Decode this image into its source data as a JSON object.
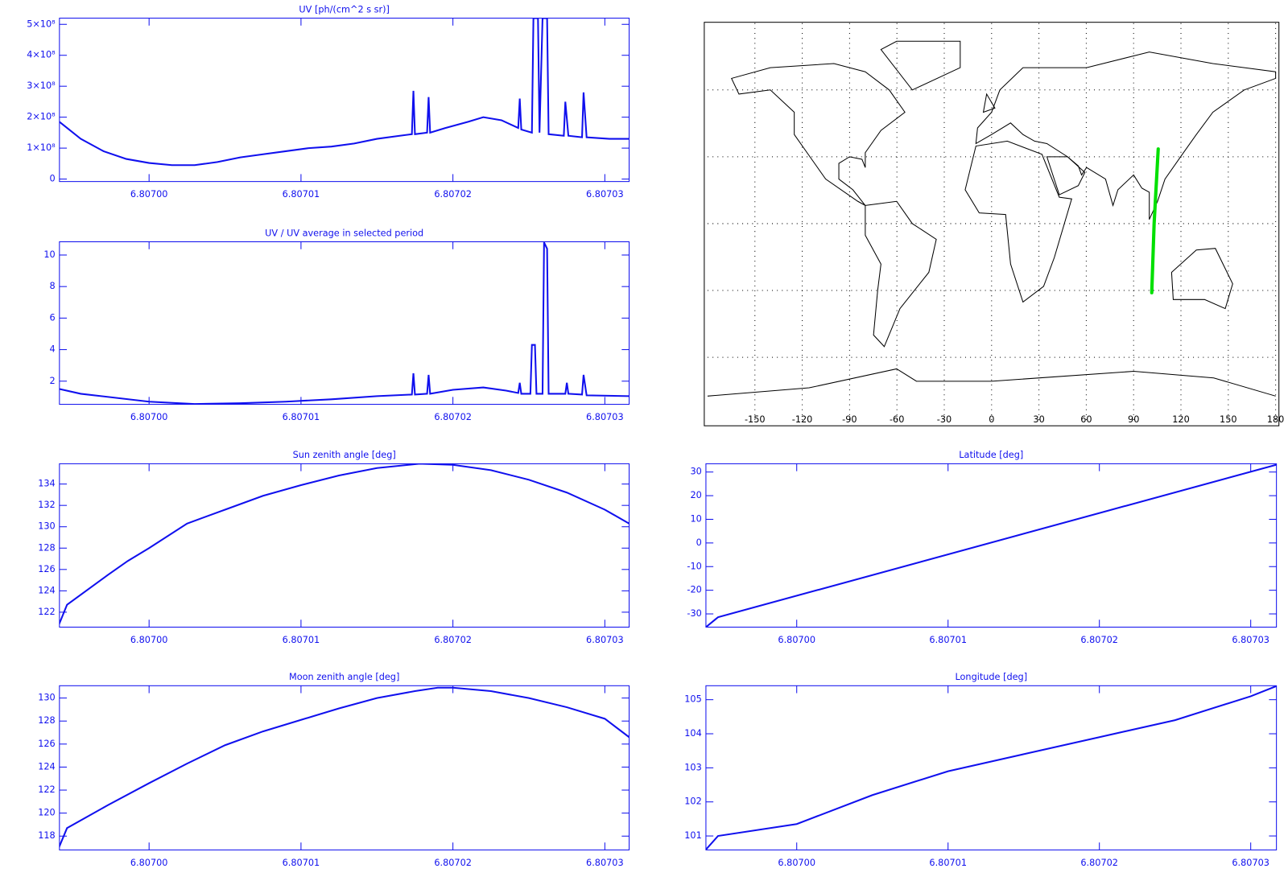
{
  "chart_data": [
    {
      "type": "line",
      "title": "UV [ph/(cm^2 s sr)]",
      "color": "#1010ee",
      "xlim": [
        6.8069941,
        6.8070316
      ],
      "ylim": [
        -8000000,
        520000000
      ],
      "xticks": [
        {
          "value": 6.807,
          "label": "6.80700"
        },
        {
          "value": 6.80701,
          "label": "6.80701"
        },
        {
          "value": 6.80702,
          "label": "6.80702"
        },
        {
          "value": 6.80703,
          "label": "6.80703"
        }
      ],
      "yticks": [
        0,
        {
          "value": 100000000,
          "label": "1×10⁸"
        },
        {
          "value": 200000000,
          "label": "2×10⁸"
        },
        {
          "value": 300000000,
          "label": "3×10⁸"
        },
        {
          "value": 400000000,
          "label": "4×10⁸"
        },
        {
          "value": 500000000,
          "label": "5×10⁸"
        }
      ],
      "x": [
        6.8069941,
        6.8069955,
        6.806997,
        6.8069985,
        6.807,
        6.8070015,
        6.807003,
        6.8070045,
        6.807006,
        6.8070075,
        6.807009,
        6.8070105,
        6.807012,
        6.8070135,
        6.807015,
        6.8070165,
        6.8070173,
        6.8070174,
        6.8070175,
        6.8070183,
        6.8070184,
        6.8070185,
        6.8070195,
        6.807021,
        6.807022,
        6.8070232,
        6.8070243,
        6.8070244,
        6.8070245,
        6.8070252,
        6.8070253,
        6.8070256,
        6.8070257,
        6.8070259,
        6.8070262,
        6.8070263,
        6.8070273,
        6.8070274,
        6.8070276,
        6.8070285,
        6.8070286,
        6.8070288,
        6.8070303,
        6.8070316
      ],
      "values": [
        185000000,
        130000000,
        90000000,
        65000000,
        52000000,
        45000000,
        45000000,
        55000000,
        70000000,
        80000000,
        90000000,
        100000000,
        105000000,
        115000000,
        130000000,
        140000000,
        145000000,
        285000000,
        145000000,
        150000000,
        265000000,
        150000000,
        165000000,
        185000000,
        200000000,
        190000000,
        165000000,
        260000000,
        160000000,
        150000000,
        520000000,
        520000000,
        150000000,
        520000000,
        520000000,
        145000000,
        140000000,
        250000000,
        140000000,
        135000000,
        280000000,
        135000000,
        130000000,
        130000000
      ]
    },
    {
      "type": "line",
      "title": "UV / UV average in selected period",
      "color": "#1010ee",
      "xlim": [
        6.8069941,
        6.8070316
      ],
      "ylim": [
        0.53,
        10.84
      ],
      "xticks": [
        {
          "value": 6.807,
          "label": "6.80700"
        },
        {
          "value": 6.80701,
          "label": "6.80701"
        },
        {
          "value": 6.80702,
          "label": "6.80702"
        },
        {
          "value": 6.80703,
          "label": "6.80703"
        }
      ],
      "yticks": [
        2,
        4,
        6,
        8,
        10
      ],
      "x": [
        6.8069941,
        6.8069955,
        6.807,
        6.807003,
        6.807006,
        6.807009,
        6.807012,
        6.807015,
        6.8070173,
        6.8070174,
        6.8070175,
        6.8070183,
        6.8070184,
        6.8070185,
        6.80702,
        6.807022,
        6.8070235,
        6.8070243,
        6.8070244,
        6.8070245,
        6.8070251,
        6.8070252,
        6.8070254,
        6.8070255,
        6.8070259,
        6.807026,
        6.8070262,
        6.8070263,
        6.8070274,
        6.8070275,
        6.8070276,
        6.8070285,
        6.8070286,
        6.8070288,
        6.8070316
      ],
      "values": [
        1.5,
        1.2,
        0.7,
        0.55,
        0.6,
        0.7,
        0.85,
        1.05,
        1.15,
        2.5,
        1.15,
        1.2,
        2.4,
        1.2,
        1.45,
        1.6,
        1.4,
        1.25,
        1.9,
        1.2,
        1.2,
        4.3,
        4.3,
        1.2,
        1.2,
        10.8,
        10.4,
        1.2,
        1.2,
        1.9,
        1.2,
        1.15,
        2.4,
        1.1,
        1.05
      ]
    },
    {
      "type": "line",
      "title": "Sun zenith angle [deg]",
      "color": "#1010ee",
      "xlim": [
        6.8069941,
        6.8070316
      ],
      "ylim": [
        120.6,
        135.9
      ],
      "xticks": [
        {
          "value": 6.807,
          "label": "6.80700"
        },
        {
          "value": 6.80701,
          "label": "6.80701"
        },
        {
          "value": 6.80702,
          "label": "6.80702"
        },
        {
          "value": 6.80703,
          "label": "6.80703"
        }
      ],
      "yticks": [
        122,
        124,
        126,
        128,
        130,
        132,
        134
      ],
      "x": [
        6.806994,
        6.8069946,
        6.8069973,
        6.8069986,
        6.807,
        6.8070025,
        6.807005,
        6.8070075,
        6.80701,
        6.8070125,
        6.807015,
        6.8070178,
        6.80702,
        6.8070225,
        6.807025,
        6.8070275,
        6.80703,
        6.8070316
      ],
      "values": [
        120.6,
        122.7,
        125.5,
        126.8,
        128.0,
        130.3,
        131.6,
        132.9,
        133.9,
        134.8,
        135.5,
        135.9,
        135.8,
        135.3,
        134.4,
        133.2,
        131.6,
        130.3
      ]
    },
    {
      "type": "line",
      "title": "Moon zenith angle [deg]",
      "color": "#1010ee",
      "xlim": [
        6.8069941,
        6.8070316
      ],
      "ylim": [
        116.8,
        131.07
      ],
      "xticks": [
        {
          "value": 6.807,
          "label": "6.80700"
        },
        {
          "value": 6.80701,
          "label": "6.80701"
        },
        {
          "value": 6.80702,
          "label": "6.80702"
        },
        {
          "value": 6.80703,
          "label": "6.80703"
        }
      ],
      "yticks": [
        118,
        120,
        122,
        124,
        126,
        128,
        130
      ],
      "x": [
        6.806994,
        6.8069946,
        6.8069973,
        6.807,
        6.8070025,
        6.807005,
        6.8070075,
        6.80701,
        6.8070125,
        6.807015,
        6.8070175,
        6.807019,
        6.80702,
        6.8070225,
        6.807025,
        6.8070275,
        6.80703,
        6.8070316
      ],
      "values": [
        116.8,
        118.7,
        120.7,
        122.6,
        124.3,
        125.9,
        127.1,
        128.1,
        129.1,
        130.0,
        130.6,
        130.9,
        130.9,
        130.6,
        130.0,
        129.2,
        128.2,
        126.6
      ]
    },
    {
      "type": "line",
      "title": "Latitude [deg]",
      "color": "#1010ee",
      "xlim": [
        6.806994,
        6.8070317
      ],
      "ylim": [
        -35.6,
        33.5
      ],
      "xticks": [
        {
          "value": 6.807,
          "label": "6.80700"
        },
        {
          "value": 6.80701,
          "label": "6.80701"
        },
        {
          "value": 6.80702,
          "label": "6.80702"
        },
        {
          "value": 6.80703,
          "label": "6.80703"
        }
      ],
      "yticks": [
        -30,
        -20,
        -10,
        0,
        10,
        20,
        30
      ],
      "x": [
        6.806994,
        6.8069948,
        6.8070317
      ],
      "values": [
        -35.6,
        -31.4,
        33.1
      ]
    },
    {
      "type": "line",
      "title": "Longitude [deg]",
      "color": "#1010ee",
      "xlim": [
        6.806994,
        6.8070317
      ],
      "ylim": [
        100.59,
        105.41
      ],
      "xticks": [
        {
          "value": 6.807,
          "label": "6.80700"
        },
        {
          "value": 6.80701,
          "label": "6.80701"
        },
        {
          "value": 6.80702,
          "label": "6.80702"
        },
        {
          "value": 6.80703,
          "label": "6.80703"
        }
      ],
      "yticks": [
        101,
        102,
        103,
        104,
        105
      ],
      "x": [
        6.806994,
        6.8069948,
        6.807,
        6.807005,
        6.80701,
        6.807015,
        6.80702,
        6.807025,
        6.80703,
        6.8070317
      ],
      "values": [
        100.6,
        101.0,
        101.35,
        102.2,
        102.9,
        103.4,
        103.9,
        104.4,
        105.1,
        105.4
      ]
    },
    {
      "type": "map",
      "color": "#00e000",
      "xlim": [
        -180,
        180
      ],
      "ylim": [
        -90,
        90
      ],
      "xticks": [
        -150,
        -120,
        -90,
        -60,
        -30,
        0,
        30,
        60,
        90,
        120,
        150,
        180
      ],
      "yticks": [
        -60,
        -30,
        0,
        30,
        60
      ],
      "x": [
        101.5,
        103,
        105.6
      ],
      "values": [
        -31,
        0,
        33.5
      ]
    }
  ]
}
